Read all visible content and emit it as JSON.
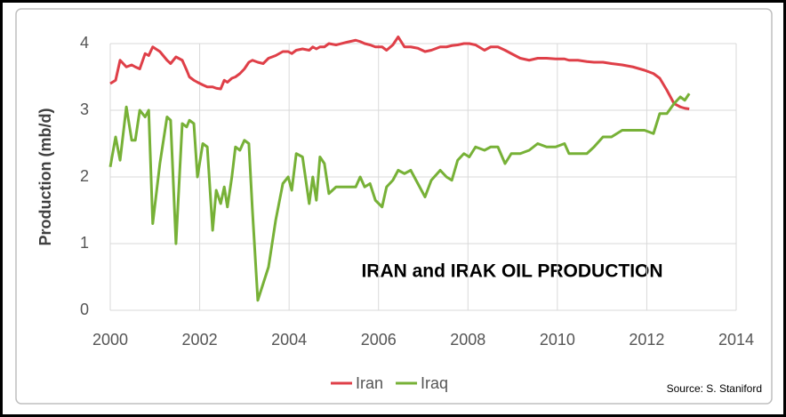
{
  "chart_data": {
    "type": "line",
    "y_label": "Production (mb/d)",
    "annotation": "IRAN and IRAK OIL PRODUCTION",
    "source": "Source: S. Staniford",
    "x": [
      2000.0,
      2000.12,
      2000.22,
      2000.36,
      2000.48,
      2000.56,
      2000.66,
      2000.78,
      2000.86,
      2000.95,
      2001.11,
      2001.27,
      2001.35,
      2001.47,
      2001.61,
      2001.71,
      2001.77,
      2001.87,
      2001.95,
      2002.07,
      2002.17,
      2002.29,
      2002.37,
      2002.47,
      2002.55,
      2002.62,
      2002.72,
      2002.8,
      2002.9,
      2003.0,
      2003.1,
      2003.18,
      2003.3,
      2003.42,
      2003.54,
      2003.7,
      2003.86,
      2003.98,
      2004.06,
      2004.16,
      2004.3,
      2004.45,
      2004.53,
      2004.61,
      2004.69,
      2004.79,
      2004.89,
      2005.05,
      2005.29,
      2005.49,
      2005.59,
      2005.69,
      2005.81,
      2005.93,
      2006.08,
      2006.18,
      2006.32,
      2006.44,
      2006.58,
      2006.72,
      2006.88,
      2007.04,
      2007.18,
      2007.38,
      2007.52,
      2007.64,
      2007.77,
      2007.91,
      2008.03,
      2008.17,
      2008.37,
      2008.51,
      2008.67,
      2008.83,
      2008.97,
      2009.17,
      2009.37,
      2009.56,
      2009.76,
      2009.96,
      2010.16,
      2010.26,
      2010.46,
      2010.66,
      2010.82,
      2011.02,
      2011.21,
      2011.45,
      2011.69,
      2011.95,
      2012.15,
      2012.29,
      2012.45,
      2012.61,
      2012.75,
      2012.85,
      2012.95
    ],
    "series": [
      {
        "name": "Iran",
        "color": "#df3f48",
        "values": [
          3.4,
          3.45,
          3.75,
          3.65,
          3.68,
          3.65,
          3.62,
          3.85,
          3.82,
          3.95,
          3.88,
          3.75,
          3.7,
          3.8,
          3.75,
          3.6,
          3.5,
          3.45,
          3.42,
          3.38,
          3.35,
          3.35,
          3.33,
          3.32,
          3.45,
          3.42,
          3.48,
          3.5,
          3.55,
          3.62,
          3.72,
          3.75,
          3.72,
          3.7,
          3.78,
          3.82,
          3.88,
          3.88,
          3.85,
          3.9,
          3.92,
          3.9,
          3.95,
          3.92,
          3.95,
          3.95,
          4.0,
          3.98,
          4.02,
          4.05,
          4.03,
          4.0,
          3.98,
          3.95,
          3.95,
          3.9,
          3.98,
          4.1,
          3.95,
          3.95,
          3.93,
          3.88,
          3.9,
          3.95,
          3.95,
          3.97,
          3.98,
          4.0,
          4.0,
          3.98,
          3.9,
          3.95,
          3.95,
          3.9,
          3.85,
          3.78,
          3.75,
          3.78,
          3.78,
          3.77,
          3.77,
          3.75,
          3.75,
          3.73,
          3.72,
          3.72,
          3.7,
          3.68,
          3.65,
          3.6,
          3.55,
          3.48,
          3.3,
          3.1,
          3.05,
          3.03,
          3.02
        ]
      },
      {
        "name": "Iraq",
        "color": "#77b137",
        "values": [
          2.15,
          2.6,
          2.25,
          3.05,
          2.55,
          2.55,
          3.0,
          2.9,
          3.0,
          1.3,
          2.2,
          2.9,
          2.85,
          1.0,
          2.8,
          2.75,
          2.85,
          2.8,
          2.0,
          2.5,
          2.45,
          1.2,
          1.8,
          1.6,
          1.85,
          1.55,
          2.0,
          2.45,
          2.4,
          2.55,
          2.5,
          1.5,
          0.15,
          0.4,
          0.65,
          1.35,
          1.9,
          2.0,
          1.8,
          2.35,
          2.3,
          1.6,
          2.0,
          1.65,
          2.3,
          2.2,
          1.75,
          1.85,
          1.85,
          1.85,
          2.0,
          1.85,
          1.9,
          1.65,
          1.55,
          1.85,
          1.95,
          2.1,
          2.05,
          2.1,
          1.9,
          1.7,
          1.95,
          2.1,
          2.0,
          1.95,
          2.25,
          2.35,
          2.3,
          2.45,
          2.4,
          2.45,
          2.45,
          2.2,
          2.35,
          2.35,
          2.4,
          2.5,
          2.45,
          2.45,
          2.5,
          2.35,
          2.35,
          2.35,
          2.45,
          2.6,
          2.6,
          2.7,
          2.7,
          2.7,
          2.65,
          2.95,
          2.95,
          3.1,
          3.2,
          3.15,
          3.25
        ]
      }
    ],
    "xlim": [
      2000,
      2014
    ],
    "xticks": [
      2000,
      2002,
      2004,
      2006,
      2008,
      2010,
      2012,
      2014
    ],
    "ylim": [
      0,
      4
    ],
    "yticks": [
      0,
      1,
      2,
      3,
      4
    ],
    "grid": true,
    "legend": "bottom"
  }
}
